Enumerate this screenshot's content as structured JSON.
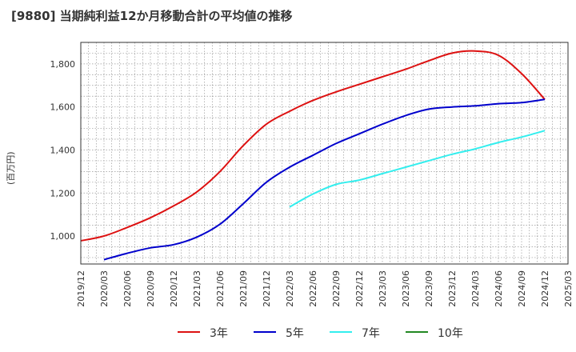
{
  "chart_data": {
    "type": "line",
    "title": "[9880]  当期純利益12か月移動合計の平均値の推移",
    "ylabel": "(百万円)",
    "ylim": [
      870,
      1900
    ],
    "y_ticks": [
      1000,
      1200,
      1400,
      1600,
      1800
    ],
    "y_tick_labels": [
      "1,000",
      "1,200",
      "1,400",
      "1,600",
      "1,800"
    ],
    "x_tick_labels": [
      "2019/12",
      "2020/03",
      "2020/06",
      "2020/09",
      "2020/12",
      "2021/03",
      "2021/06",
      "2021/09",
      "2021/12",
      "2022/03",
      "2022/06",
      "2022/09",
      "2022/12",
      "2023/03",
      "2023/06",
      "2023/09",
      "2023/12",
      "2024/03",
      "2024/06",
      "2024/09",
      "2024/12",
      "2025/03"
    ],
    "grid": true,
    "legend_position": "bottom",
    "series": [
      {
        "name": "3年",
        "color": "#dd1111",
        "x": [
          "2019/12",
          "2020/03",
          "2020/06",
          "2020/09",
          "2020/12",
          "2021/03",
          "2021/06",
          "2021/09",
          "2021/12",
          "2022/03",
          "2022/06",
          "2022/09",
          "2022/12",
          "2023/03",
          "2023/06",
          "2023/09",
          "2023/12",
          "2024/03",
          "2024/06",
          "2024/09",
          "2024/12"
        ],
        "values": [
          978,
          1000,
          1040,
          1085,
          1140,
          1205,
          1300,
          1420,
          1520,
          1580,
          1630,
          1670,
          1705,
          1740,
          1775,
          1815,
          1850,
          1860,
          1840,
          1755,
          1635
        ]
      },
      {
        "name": "5年",
        "color": "#0000cc",
        "x": [
          "2020/03",
          "2020/06",
          "2020/09",
          "2020/12",
          "2021/03",
          "2021/06",
          "2021/09",
          "2021/12",
          "2022/03",
          "2022/06",
          "2022/09",
          "2022/12",
          "2023/03",
          "2023/06",
          "2023/09",
          "2023/12",
          "2024/03",
          "2024/06",
          "2024/09",
          "2024/12"
        ],
        "values": [
          890,
          920,
          945,
          960,
          995,
          1055,
          1150,
          1250,
          1320,
          1375,
          1430,
          1475,
          1520,
          1560,
          1590,
          1600,
          1605,
          1615,
          1620,
          1635
        ]
      },
      {
        "name": "7年",
        "color": "#33eeee",
        "x": [
          "2022/03",
          "2022/06",
          "2022/09",
          "2022/12",
          "2023/03",
          "2023/06",
          "2023/09",
          "2023/12",
          "2024/03",
          "2024/06",
          "2024/09",
          "2024/12"
        ],
        "values": [
          1135,
          1195,
          1240,
          1260,
          1290,
          1320,
          1350,
          1380,
          1405,
          1435,
          1460,
          1490
        ]
      },
      {
        "name": "10年",
        "color": "#228822",
        "x": [],
        "values": []
      }
    ]
  }
}
